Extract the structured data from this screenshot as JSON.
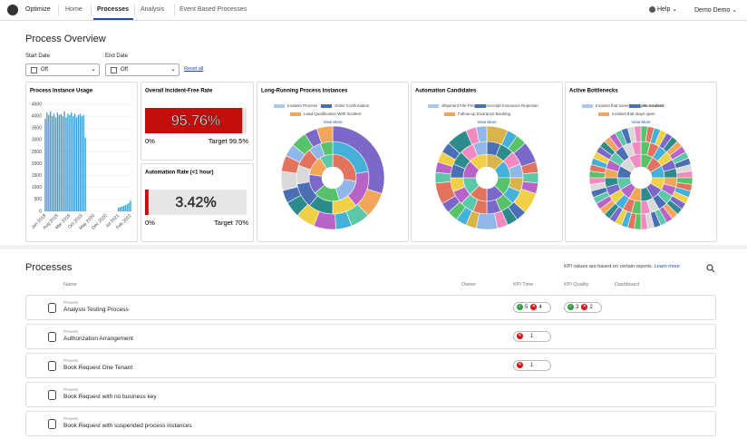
{
  "nav": {
    "logo": "Optimize",
    "tabs": [
      "Home",
      "Processes",
      "Analysis",
      "Event Based Processes"
    ],
    "active": 1,
    "help": "Help",
    "user": "Demo Demo"
  },
  "overview": {
    "title": "Process Overview",
    "filters": [
      {
        "label": "Start Date",
        "value": "Off"
      },
      {
        "label": "End Date",
        "value": "Off"
      }
    ],
    "reset": "Reset all"
  },
  "chart_data": [
    {
      "type": "bar",
      "title": "Process Instance Usage",
      "color": "#3a9bd5",
      "ylim": [
        0,
        4500
      ],
      "yticks": [
        0,
        500,
        1000,
        1500,
        2000,
        2500,
        3000,
        3500,
        4000,
        4500
      ],
      "grid": true,
      "categories": [
        "Jan 2018",
        null,
        null,
        null,
        null,
        null,
        null,
        "Aug 2018",
        null,
        null,
        null,
        null,
        null,
        null,
        "Mar 2019",
        null,
        null,
        null,
        null,
        null,
        null,
        "Oct 2019",
        null,
        null,
        null,
        null,
        null,
        null,
        "May 2020",
        null,
        null,
        null,
        null,
        null,
        null,
        "Dec 2020",
        null,
        null,
        null,
        null,
        null,
        null,
        "Jul 2021",
        null,
        null,
        null,
        null,
        null,
        null,
        "Feb 2022"
      ],
      "values": [
        3900,
        4150,
        4050,
        4200,
        4000,
        4100,
        3950,
        4150,
        4050,
        4100,
        4000,
        4200,
        3950,
        4100,
        4050,
        4150,
        4000,
        4100,
        3950,
        4050,
        4100,
        4000,
        4050,
        3100,
        0,
        0,
        0,
        0,
        0,
        0,
        0,
        0,
        0,
        0,
        0,
        0,
        0,
        0,
        0,
        0,
        0,
        0,
        150,
        180,
        200,
        230,
        260,
        300,
        350,
        450
      ]
    },
    {
      "type": "sunburst",
      "title": "Long-Running Process Instances",
      "link": "View More",
      "legend": [
        {
          "name": "Incident Process",
          "color": "#a9c8ef"
        },
        {
          "name": "Order Confirmation",
          "color": "#4a6fb5"
        },
        {
          "name": "Lead Qualification With Incident",
          "color": "#f2a65a"
        }
      ],
      "palette": [
        "#e3735e",
        "#8fb8e8",
        "#57c26a",
        "#7b68c9",
        "#f2a65a",
        "#5cc8a8",
        "#45b0d8",
        "#b863c8",
        "#f0d044",
        "#2e8b8b",
        "#4a6fb5",
        "#d9d9d9"
      ],
      "rings": [
        [
          3,
          2,
          2,
          1.5,
          1.5,
          1
        ],
        [
          4,
          3,
          2,
          2,
          2,
          1.5,
          1.5,
          1,
          1
        ],
        [
          30,
          8,
          6,
          5,
          7,
          6,
          5,
          4,
          6,
          5,
          4,
          5,
          4,
          5
        ]
      ]
    },
    {
      "type": "sunburst",
      "title": "Automation Candidates",
      "link": "View More",
      "legend": [
        {
          "name": "Shipment File Preparation",
          "color": "#a9c8ef"
        },
        {
          "name": "Accept Insurance Rejection",
          "color": "#4a6fb5"
        },
        {
          "name": "Follow-up Insurance Booking",
          "color": "#f2a65a"
        }
      ],
      "palette": [
        "#d9b44a",
        "#45b0d8",
        "#57c26a",
        "#7b68c9",
        "#e3735e",
        "#5cc8a8",
        "#b863c8",
        "#f0d044",
        "#4a6fb5",
        "#2e8b8b",
        "#f28ac0",
        "#8fb8e8"
      ],
      "rings": [
        [
          2,
          2,
          2,
          2,
          2,
          2,
          2,
          2
        ],
        [
          1,
          1,
          1,
          1,
          1,
          1,
          1,
          1,
          1,
          1,
          1,
          1,
          1,
          1,
          1,
          1
        ],
        [
          2,
          1,
          1,
          2,
          1,
          1,
          1,
          2,
          1,
          1,
          1,
          2,
          1,
          1,
          1,
          1,
          2,
          1,
          1,
          1,
          1,
          2,
          1,
          1
        ]
      ]
    },
    {
      "type": "sunburst",
      "title": "Active Bottlenecks",
      "link": "View More",
      "legend": [
        {
          "name": "Incident that sometimes gets resolved",
          "color": "#a9c8ef"
        },
        {
          "name": "No Incident",
          "color": "#4a6fb5"
        },
        {
          "name": "Incident that stays open",
          "color": "#f2a65a"
        }
      ],
      "palette": [
        "#57c26a",
        "#e3735e",
        "#45b0d8",
        "#f0d044",
        "#7b68c9",
        "#2e8b8b",
        "#f2a65a",
        "#b863c8",
        "#5cc8a8",
        "#4a6fb5",
        "#d9d9d9",
        "#f28ac0"
      ],
      "rings": [
        [
          1,
          1,
          1,
          1,
          1,
          1,
          1,
          1,
          1,
          1,
          1,
          1
        ],
        [
          1,
          1,
          1,
          1,
          1,
          1,
          1,
          1,
          1,
          1,
          1,
          1,
          1,
          1,
          1,
          1,
          1,
          1,
          1,
          1,
          1,
          1,
          1,
          1
        ],
        [
          1,
          1,
          1,
          1,
          1,
          1,
          1,
          1,
          1,
          1,
          1,
          1,
          1,
          1,
          1,
          1,
          1,
          1,
          1,
          1,
          1,
          1,
          1,
          1,
          1,
          1,
          1,
          1,
          1,
          1,
          1,
          1,
          1,
          1,
          1,
          1,
          1,
          1,
          1,
          1,
          1,
          1,
          1,
          1,
          1,
          1,
          1,
          1
        ]
      ]
    }
  ],
  "kpis": [
    {
      "title": "Overall Incident-Free Rate",
      "value": 95.76,
      "value_label": "95.76%",
      "min_label": "0%",
      "target_label": "Target 99.5%",
      "color": "#c40d0d"
    },
    {
      "title": "Automation Rate (<1 hour)",
      "value": 3.42,
      "value_label": "3.42%",
      "min_label": "0%",
      "target_label": "Target 70%",
      "color": "#c40d0d"
    }
  ],
  "processes": {
    "title": "Processes",
    "note": "KPI values are based on certain reports.",
    "link": "Learn more",
    "columns": [
      "Name",
      "Owner",
      "KPI Time",
      "KPI Quality",
      "Dashboard"
    ],
    "rows": [
      {
        "type": "Process",
        "name": "Analysis Testing Process",
        "kpi_time": {
          "ok": 5,
          "fail": 4
        },
        "kpi_quality": {
          "ok": 3,
          "fail": 2
        }
      },
      {
        "type": "Process",
        "name": "Authorization Arrangement",
        "kpi_time": {
          "fail": 1
        }
      },
      {
        "type": "Process",
        "name": "Book Request One Tenant",
        "kpi_time": {
          "fail": 1
        }
      },
      {
        "type": "Process",
        "name": "Book Request with no business key"
      },
      {
        "type": "Process",
        "name": "Book Request with suspended process instances"
      }
    ]
  }
}
